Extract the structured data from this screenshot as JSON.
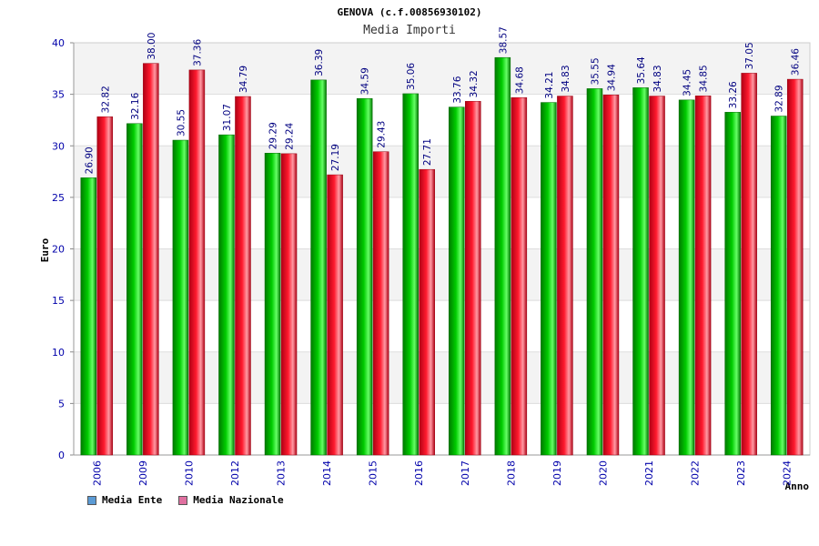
{
  "chart_data": {
    "type": "bar",
    "title": "GENOVA (c.f.00856930102)",
    "subtitle": "Media Importi",
    "xlabel": "Anno",
    "ylabel": "Euro",
    "ylim": [
      0,
      40
    ],
    "yticks": [
      "0",
      "5",
      "10",
      "15",
      "20",
      "25",
      "30",
      "35",
      "40"
    ],
    "categories": [
      "2006",
      "2009",
      "2010",
      "2012",
      "2013",
      "2014",
      "2015",
      "2016",
      "2017",
      "2018",
      "2019",
      "2020",
      "2021",
      "2022",
      "2023",
      "2024"
    ],
    "series": [
      {
        "name": "Media Ente",
        "values": [
          26.9,
          32.16,
          30.55,
          31.07,
          29.29,
          36.39,
          34.59,
          35.06,
          33.76,
          38.57,
          34.21,
          35.55,
          35.64,
          34.45,
          33.26,
          32.89
        ],
        "labels": [
          "26.90",
          "32.16",
          "30.55",
          "31.07",
          "29.29",
          "36.39",
          "34.59",
          "35.06",
          "33.76",
          "38.57",
          "34.21",
          "35.55",
          "35.64",
          "34.45",
          "33.26",
          "32.89"
        ],
        "color": "#00c000",
        "legend_color": "#5b9bd5"
      },
      {
        "name": "Media Nazionale",
        "values": [
          32.82,
          38.0,
          37.36,
          34.79,
          29.24,
          27.19,
          29.43,
          27.71,
          34.32,
          34.68,
          34.83,
          34.94,
          34.83,
          34.85,
          37.05,
          36.46
        ],
        "labels": [
          "32.82",
          "38.00",
          "37.36",
          "34.79",
          "29.24",
          "27.19",
          "29.43",
          "27.71",
          "34.32",
          "34.68",
          "34.83",
          "34.94",
          "34.83",
          "34.85",
          "37.05",
          "36.46"
        ],
        "color": "#e8001c",
        "legend_color": "#e070a0"
      }
    ],
    "legend_position": "bottom-left",
    "grid": true
  }
}
